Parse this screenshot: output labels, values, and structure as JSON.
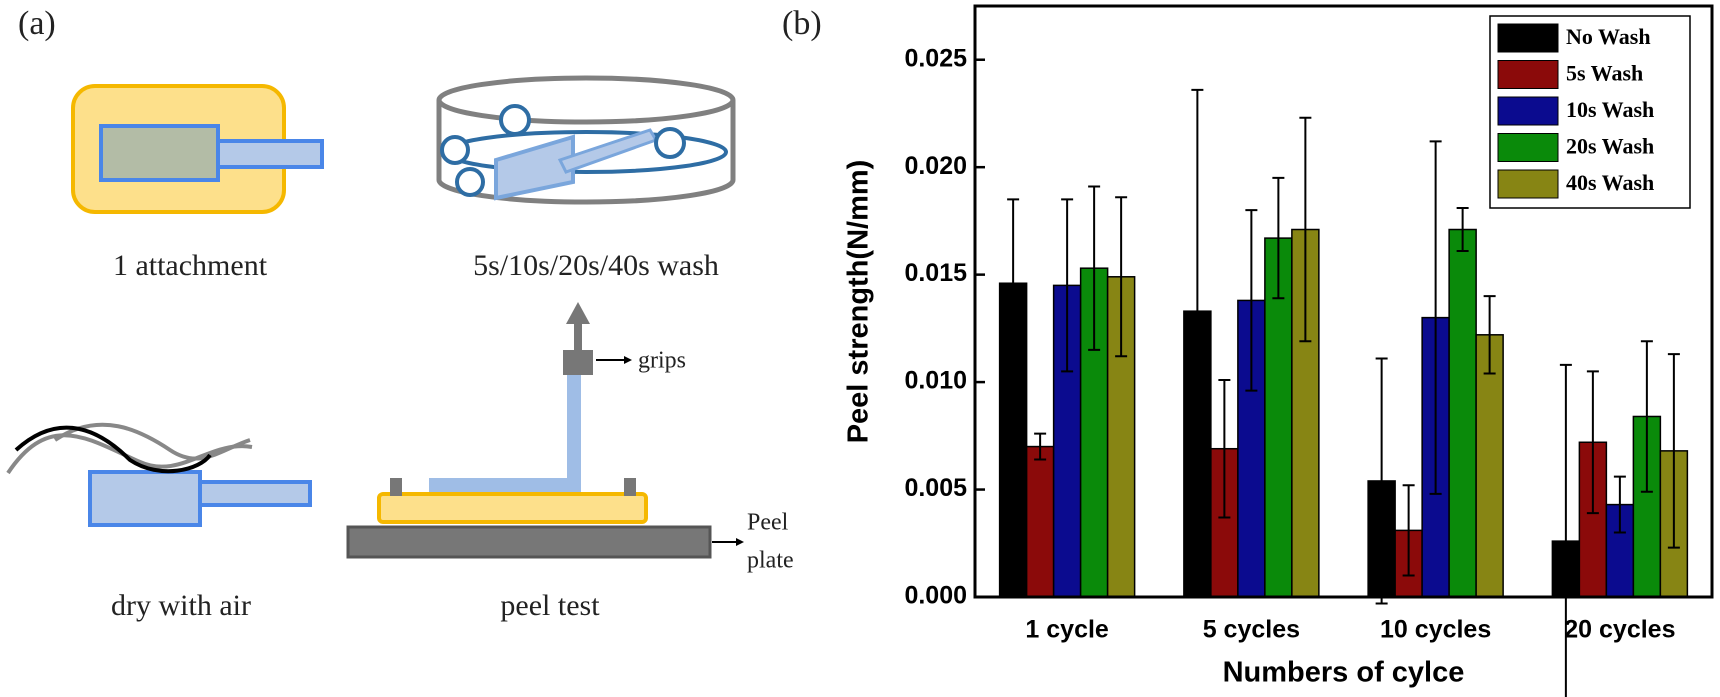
{
  "panels": {
    "a": "(a)",
    "b": "(b)"
  },
  "diagram": {
    "attachment": "1 attachment",
    "wash": "5s/10s/20s/40s wash",
    "grips": "grips",
    "peel_plate": [
      "Peel",
      "plate"
    ],
    "dry": "dry with air",
    "peel_test": "peel test"
  },
  "chart_data": {
    "type": "bar",
    "y_label": "Peel strength(N/mm)",
    "x_label": "Numbers of cylce",
    "categories": [
      "1 cycle",
      "5 cycles",
      "10 cycles",
      "20 cycles"
    ],
    "series": [
      {
        "name": "No Wash",
        "color": "#000000",
        "values": [
          0.0146,
          0.0133,
          0.0054,
          0.0026
        ],
        "errors": [
          0.0039,
          0.0103,
          0.0057,
          0.0082
        ]
      },
      {
        "name": "5s Wash",
        "color": "#8b0a0a",
        "values": [
          0.007,
          0.0069,
          0.0031,
          0.0072
        ],
        "errors": [
          0.0006,
          0.0032,
          0.0021,
          0.0033
        ]
      },
      {
        "name": "10s Wash",
        "color": "#0b0b8f",
        "values": [
          0.0145,
          0.0138,
          0.013,
          0.0043
        ],
        "errors": [
          0.004,
          0.0042,
          0.0082,
          0.0013
        ]
      },
      {
        "name": "20s Wash",
        "color": "#0a8a0a",
        "values": [
          0.0153,
          0.0167,
          0.0171,
          0.0084
        ],
        "errors": [
          0.0038,
          0.0028,
          0.001,
          0.0035
        ]
      },
      {
        "name": "40s Wash",
        "color": "#878514",
        "values": [
          0.0149,
          0.0171,
          0.0122,
          0.0068
        ],
        "errors": [
          0.0037,
          0.0052,
          0.0018,
          0.0045
        ]
      }
    ],
    "ylim": [
      0,
      0.0275
    ],
    "yticks": [
      {
        "value": 0,
        "label": "0.000"
      },
      {
        "value": 0.005,
        "label": "0.005"
      },
      {
        "value": 0.01,
        "label": "0.010"
      },
      {
        "value": 0.015,
        "label": "0.015"
      },
      {
        "value": 0.02,
        "label": "0.020"
      },
      {
        "value": 0.025,
        "label": "0.025"
      }
    ],
    "legend": "upper right"
  }
}
